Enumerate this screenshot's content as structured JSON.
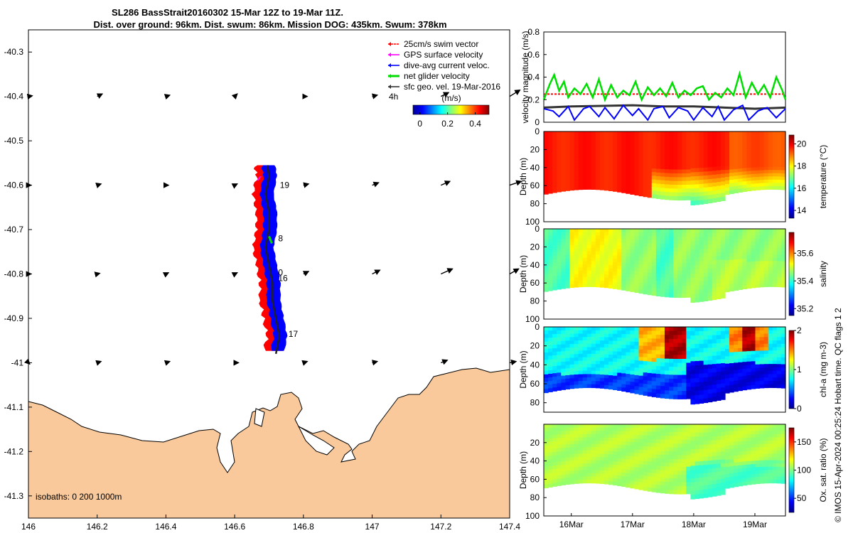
{
  "header": {
    "title_line1": "SL286 BassStrait20160302 15-Mar 12Z to 19-Mar 11Z.",
    "title_line2": "Dist. over ground: 96km. Dist. swum: 86km. Mission DOG: 435km. Swum: 378km"
  },
  "colors": {
    "land": "#f9c99b",
    "swim": "#ff0000",
    "gps": "#ff00ff",
    "current": "#0000ff",
    "net": "#00dd00",
    "geo": "#333333"
  },
  "footer": {
    "copyright": "© IMOS 15-Apr-2024 00:25:24 Hobart time. QC flags 1  2"
  },
  "chart_data": [
    {
      "type": "map",
      "name": "track-map",
      "xlim": [
        146,
        147.4
      ],
      "ylim": [
        -41.35,
        -40.25
      ],
      "x_ticks": [
        "146",
        "146.2",
        "146.4",
        "146.6",
        "146.8",
        "147",
        "147.2",
        "147.4"
      ],
      "x_tick_values": [
        146,
        146.2,
        146.4,
        146.6,
        146.8,
        147,
        147.2,
        147.4
      ],
      "y_ticks": [
        "-40.3",
        "-40.4",
        "-40.5",
        "-40.6",
        "-40.7",
        "-40.8",
        "-40.9",
        "-41",
        "-41.1",
        "-41.2",
        "-41.3"
      ],
      "y_tick_values": [
        -40.3,
        -40.4,
        -40.5,
        -40.6,
        -40.7,
        -40.8,
        -40.9,
        -41,
        -41.1,
        -41.2,
        -41.3
      ],
      "legend": [
        {
          "label": "25cm/s swim vector",
          "color": "#ff0000"
        },
        {
          "label": "GPS surface velocity",
          "color": "#ff00ff"
        },
        {
          "label": "dive-avg current veloc.",
          "color": "#0000ff"
        },
        {
          "label": "net glider velocity",
          "color": "#00dd00"
        },
        {
          "label": "sfc geo. vel. 19-Mar-2016",
          "color": "#333333"
        }
      ],
      "legend_placement": "top-right",
      "vector_label": "4h",
      "colorbar": {
        "label": "(m/s)",
        "ticks": [
          "0",
          "0.2",
          "0.4"
        ],
        "tick_values": [
          0,
          0.2,
          0.4
        ],
        "range": [
          -0.05,
          0.5
        ]
      },
      "isobaths_label": "isobaths: 0   200  1000m",
      "day_labels": [
        {
          "text": "19",
          "lon": 146.715,
          "lat": -40.6
        },
        {
          "text": "8",
          "lon": 146.71,
          "lat": -40.72
        },
        {
          "text": "0",
          "lon": 146.71,
          "lat": -40.797
        },
        {
          "text": "16",
          "lon": 146.71,
          "lat": -40.81
        },
        {
          "text": "17",
          "lon": 146.74,
          "lat": -40.935
        }
      ],
      "track": [
        [
          146.695,
          -40.555
        ],
        [
          146.7,
          -40.58
        ],
        [
          146.69,
          -40.62
        ],
        [
          146.7,
          -40.66
        ],
        [
          146.7,
          -40.7
        ],
        [
          146.69,
          -40.74
        ],
        [
          146.7,
          -40.78
        ],
        [
          146.71,
          -40.82
        ],
        [
          146.71,
          -40.86
        ],
        [
          146.72,
          -40.9
        ],
        [
          146.73,
          -40.94
        ],
        [
          146.72,
          -40.98
        ]
      ],
      "geo_vectors": {
        "lons": [
          146,
          146.2,
          146.4,
          146.6,
          146.8,
          147,
          147.2,
          147.4
        ],
        "lats": [
          -40.4,
          -40.6,
          -40.8,
          -41.0
        ],
        "u": [
          [
            0.03,
            0.04,
            0.03,
            0.02,
            0.03,
            0.04,
            0.06,
            0.08
          ],
          [
            0.02,
            0.03,
            0.02,
            0.02,
            0.04,
            0.05,
            0.07,
            0.09
          ],
          [
            0.02,
            0.02,
            0.02,
            0.02,
            0.04,
            0.06,
            0.09,
            0.07
          ],
          [
            0.01,
            0.03,
            0.03,
            0.03,
            0.03,
            0.04,
            0.05,
            0.05
          ]
        ],
        "v": [
          [
            0.005,
            0.02,
            0.01,
            0.02,
            0.0,
            0.01,
            0.03,
            0.05
          ],
          [
            0.0,
            0.01,
            0.0,
            0.01,
            0.01,
            0.02,
            0.03,
            0.03
          ],
          [
            0.0,
            0.005,
            0.01,
            0.01,
            0.02,
            0.03,
            0.04,
            0.04
          ],
          [
            -0.01,
            0.01,
            0.01,
            0.0,
            0.01,
            0.01,
            0.02,
            0.01
          ]
        ]
      }
    },
    {
      "type": "line",
      "name": "velocity-panel",
      "ylabel": "velocity magnitude (m/s)",
      "x_range": [
        15.55,
        19.5
      ],
      "ylim": [
        0,
        0.8
      ],
      "y_ticks": [
        "0",
        "0.2",
        "0.4",
        "0.6",
        "0.8"
      ],
      "y_tick_values": [
        0,
        0.2,
        0.4,
        0.6,
        0.8
      ],
      "series": [
        {
          "color": "#ff0000",
          "style": "dashed",
          "x": [
            15.55,
            19.5
          ],
          "y": [
            0.25,
            0.25
          ]
        },
        {
          "color": "#333333",
          "x": [
            15.55,
            16,
            16.5,
            17,
            17.5,
            18,
            18.5,
            19,
            19.5
          ],
          "y": [
            0.13,
            0.14,
            0.145,
            0.15,
            0.14,
            0.14,
            0.13,
            0.12,
            0.13
          ]
        },
        {
          "color": "#0000ff",
          "x": [
            15.55,
            15.7,
            15.8,
            15.95,
            16.05,
            16.2,
            16.3,
            16.45,
            16.55,
            16.7,
            16.85,
            17.0,
            17.1,
            17.25,
            17.35,
            17.5,
            17.6,
            17.75,
            17.9,
            18.0,
            18.15,
            18.3,
            18.4,
            18.5,
            18.65,
            18.8,
            18.9,
            19.05,
            19.2,
            19.35,
            19.5
          ],
          "y": [
            0.12,
            0.1,
            0.05,
            0.14,
            0.02,
            0.12,
            0.14,
            0.05,
            0.13,
            0.03,
            0.15,
            0.06,
            0.12,
            0.02,
            0.12,
            0.14,
            0.04,
            0.13,
            0.1,
            0.02,
            0.13,
            0.05,
            0.14,
            0.02,
            0.11,
            0.15,
            0.02,
            0.1,
            0.13,
            0.04,
            0.12
          ]
        },
        {
          "color": "#00dd00",
          "x": [
            15.55,
            15.65,
            15.72,
            15.8,
            15.88,
            15.95,
            16.05,
            16.15,
            16.25,
            16.35,
            16.45,
            16.55,
            16.65,
            16.75,
            16.85,
            16.95,
            17.05,
            17.15,
            17.25,
            17.35,
            17.45,
            17.55,
            17.65,
            17.75,
            17.85,
            17.95,
            18.05,
            18.15,
            18.25,
            18.35,
            18.45,
            18.55,
            18.65,
            18.75,
            18.85,
            18.95,
            19.05,
            19.15,
            19.25,
            19.35,
            19.45,
            19.5
          ],
          "y": [
            0.2,
            0.34,
            0.42,
            0.28,
            0.36,
            0.22,
            0.3,
            0.25,
            0.34,
            0.22,
            0.38,
            0.2,
            0.33,
            0.22,
            0.28,
            0.24,
            0.36,
            0.2,
            0.31,
            0.24,
            0.3,
            0.23,
            0.35,
            0.22,
            0.28,
            0.24,
            0.3,
            0.32,
            0.2,
            0.26,
            0.22,
            0.3,
            0.24,
            0.43,
            0.22,
            0.35,
            0.25,
            0.33,
            0.22,
            0.4,
            0.28,
            0.2
          ]
        }
      ]
    },
    {
      "type": "heatmap",
      "name": "temperature-panel",
      "ylabel": "Depth (m)",
      "clabel": "temperature (°C)",
      "ylim": [
        0,
        100
      ],
      "y_ticks": [
        "0",
        "20",
        "40",
        "60",
        "80",
        "100"
      ],
      "y_tick_values": [
        0,
        20,
        40,
        60,
        80,
        100
      ],
      "clim": [
        13.3,
        20.8
      ],
      "c_ticks": [
        "14",
        "16",
        "18",
        "20"
      ],
      "c_tick_values": [
        14,
        16,
        18,
        20
      ]
    },
    {
      "type": "heatmap",
      "name": "salinity-panel",
      "ylabel": "Depth (m)",
      "clabel": "salinity",
      "ylim": [
        0,
        100
      ],
      "y_ticks": [
        "0",
        "20",
        "40",
        "60",
        "80",
        "100"
      ],
      "y_tick_values": [
        0,
        20,
        40,
        60,
        80,
        100
      ],
      "clim": [
        35.15,
        35.75
      ],
      "c_ticks": [
        "35.2",
        "35.4",
        "35.6"
      ],
      "c_tick_values": [
        35.2,
        35.4,
        35.6
      ]
    },
    {
      "type": "heatmap",
      "name": "chla-panel",
      "ylabel": "Depth (m)",
      "clabel": "chl-a (mg m-3)",
      "ylim": [
        0,
        90
      ],
      "y_ticks": [
        "0",
        "20",
        "40",
        "60",
        "80"
      ],
      "y_tick_values": [
        0,
        20,
        40,
        60,
        80
      ],
      "clim": [
        0,
        2
      ],
      "c_ticks": [
        "0",
        "1",
        "2"
      ],
      "c_tick_values": [
        0,
        1,
        2
      ]
    },
    {
      "type": "heatmap",
      "name": "oxygen-panel",
      "ylabel": "Depth (m)",
      "clabel": "Ox. sat. ratio (%)",
      "ylim": [
        0,
        100
      ],
      "y_ticks": [
        "20",
        "40",
        "60",
        "80",
        "100"
      ],
      "y_tick_values": [
        20,
        40,
        60,
        80,
        100
      ],
      "clim": [
        25,
        175
      ],
      "c_ticks": [
        "50",
        "100",
        "150"
      ],
      "c_tick_values": [
        50,
        100,
        150
      ],
      "x_ticks": [
        "16Mar",
        "17Mar",
        "18Mar",
        "19Mar"
      ],
      "x_tick_values": [
        16,
        17,
        18,
        19
      ]
    }
  ]
}
